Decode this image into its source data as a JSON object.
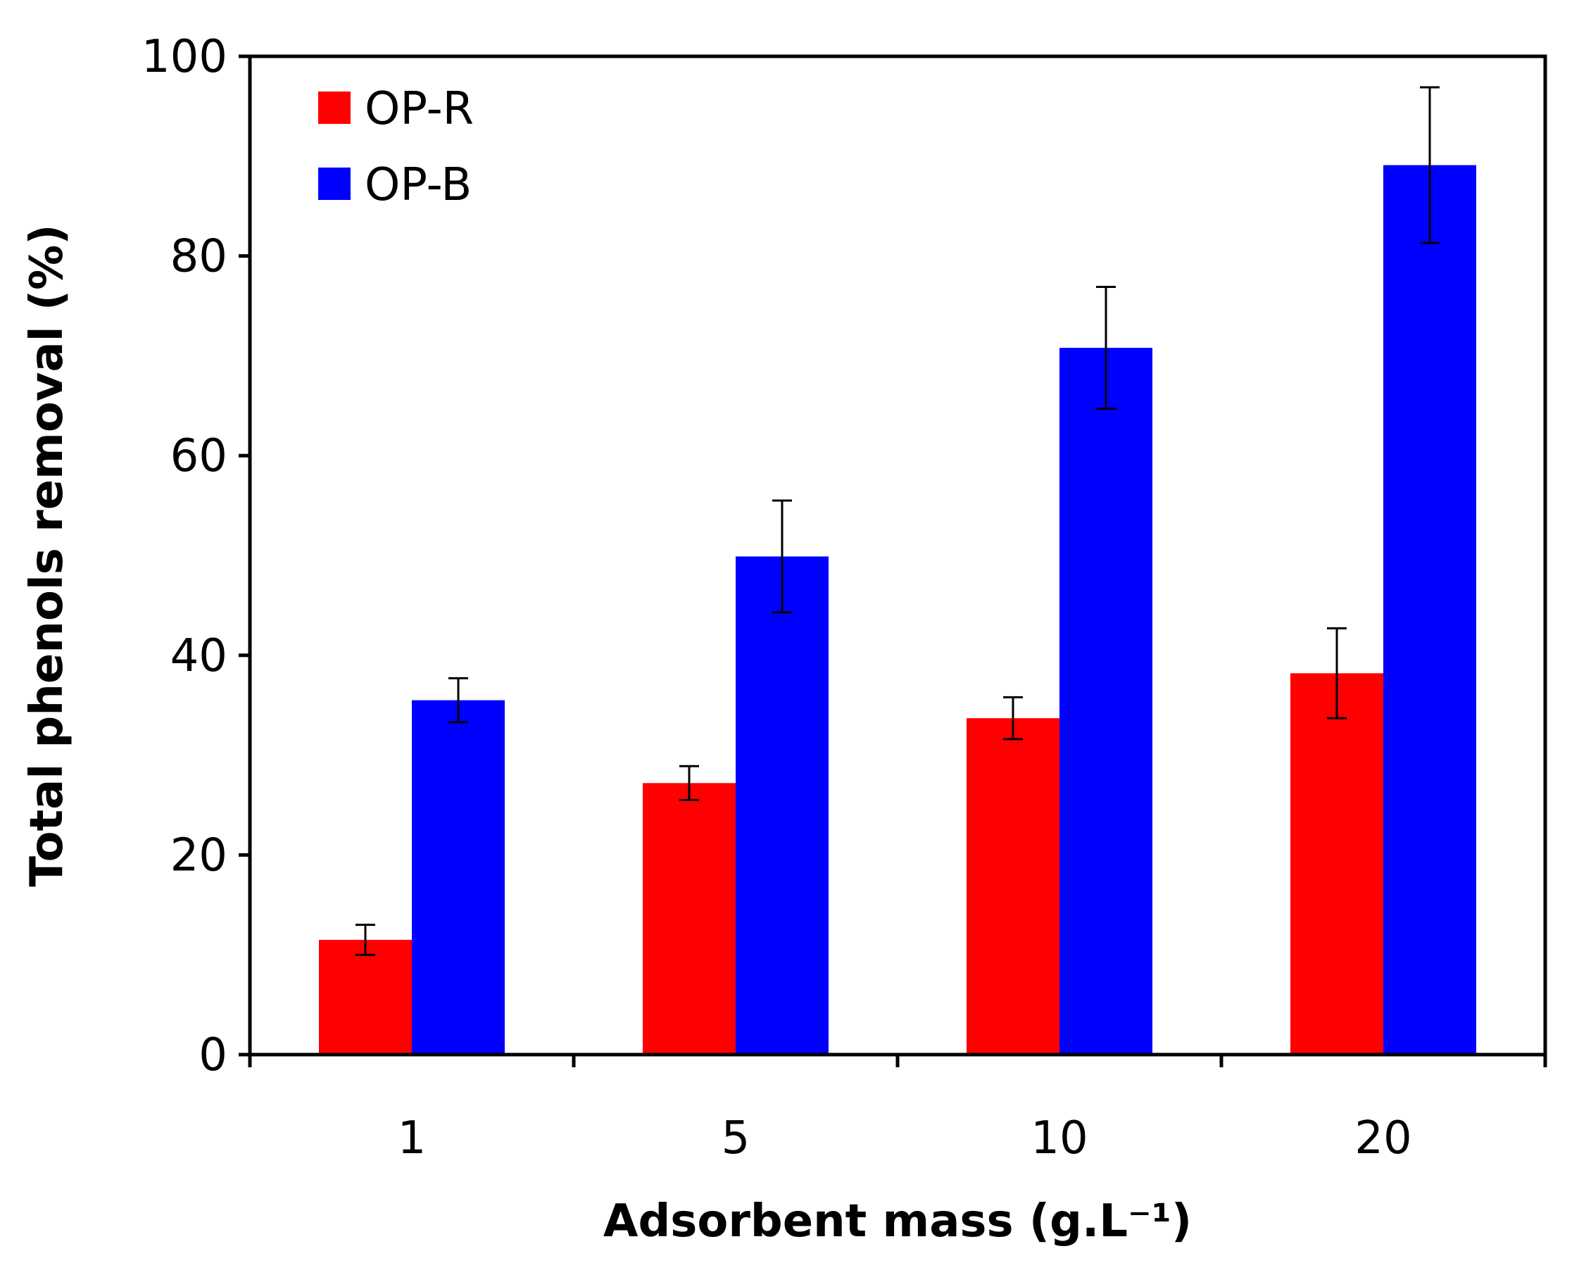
{
  "chart_data": {
    "type": "bar",
    "title": "",
    "xlabel": "Adsorbent mass (g.L⁻¹)",
    "ylabel": "Total phenols removal (%)",
    "categories": [
      "1",
      "5",
      "10",
      "20"
    ],
    "ylim": [
      0,
      100
    ],
    "yticks": [
      "0",
      "20",
      "40",
      "60",
      "80",
      "100"
    ],
    "grid": false,
    "legend_position": "top-left",
    "series": [
      {
        "name": "OP-R",
        "color": "#ff0000",
        "values": [
          11.5,
          27.2,
          33.7,
          38.2
        ],
        "errors": [
          1.5,
          1.7,
          2.1,
          4.5
        ]
      },
      {
        "name": "OP-B",
        "color": "#0000ff",
        "values": [
          35.5,
          49.9,
          70.8,
          89.1
        ],
        "errors": [
          2.2,
          5.6,
          6.1,
          7.8
        ]
      }
    ]
  }
}
